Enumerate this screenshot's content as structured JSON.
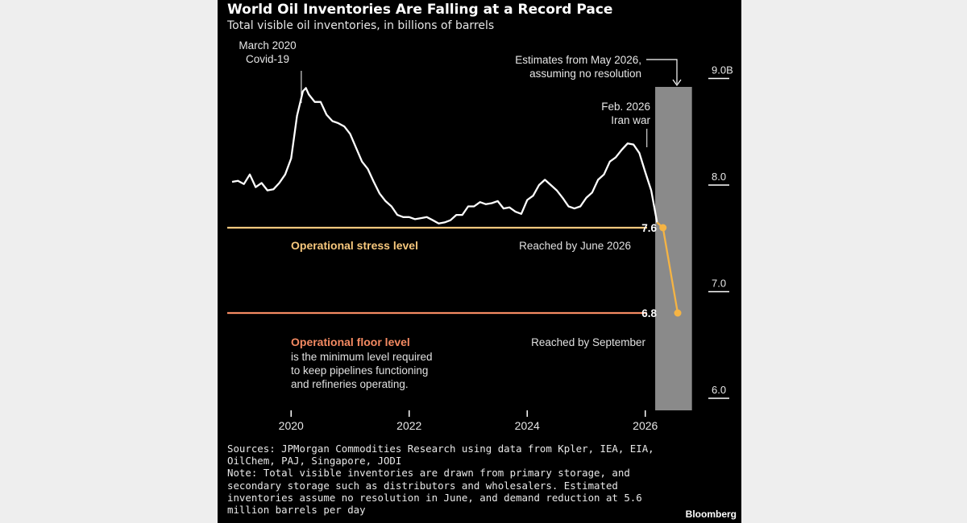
{
  "colors": {
    "background": "#000000",
    "line": "#ffffff",
    "estimate_line": "#f5b444",
    "stress_level": "#f7c87d",
    "floor_level": "#f48a62",
    "shade": "#8a8a8a"
  },
  "title": "World Oil Inventories Are Falling at a Record Pace",
  "subtitle": "Total visible oil inventories, in billions of barrels",
  "chart_data": {
    "type": "line",
    "title": "World Oil Inventories Are Falling at a Record Pace",
    "subtitle": "Total visible oil inventories, in billions of barrels",
    "xlabel": "",
    "ylabel": "",
    "xlim": [
      2019.0,
      2026.9
    ],
    "ylim": [
      6.0,
      9.0
    ],
    "x_ticks": [
      2020,
      2022,
      2024,
      2026
    ],
    "x_tick_labels": [
      "2020",
      "2022",
      "2024",
      "2026"
    ],
    "y_ticks": [
      6.0,
      7.0,
      8.0,
      9.0
    ],
    "y_tick_labels": [
      "6.0",
      "7.0",
      "8.0",
      "9.0B"
    ],
    "grid": false,
    "series": [
      {
        "x": [
          2019.0,
          2019.1,
          2019.2,
          2019.3,
          2019.4,
          2019.5,
          2019.6,
          2019.7,
          2019.8,
          2019.9,
          2020.0,
          2020.1,
          2020.2,
          2020.25,
          2020.3,
          2020.4,
          2020.5,
          2020.6,
          2020.7,
          2020.8,
          2020.9,
          2021.0,
          2021.1,
          2021.2,
          2021.3,
          2021.4,
          2021.5,
          2021.6,
          2021.7,
          2021.8,
          2021.9,
          2022.0,
          2022.1,
          2022.2,
          2022.3,
          2022.4,
          2022.5,
          2022.6,
          2022.7,
          2022.8,
          2022.9,
          2023.0,
          2023.1,
          2023.2,
          2023.3,
          2023.4,
          2023.5,
          2023.6,
          2023.7,
          2023.8,
          2023.9,
          2024.0,
          2024.1,
          2024.2,
          2024.3,
          2024.4,
          2024.5,
          2024.6,
          2024.7,
          2024.8,
          2024.9,
          2025.0,
          2025.1,
          2025.2,
          2025.3,
          2025.4,
          2025.5,
          2025.6,
          2025.7,
          2025.8,
          2025.9,
          2026.0,
          2026.1,
          2026.2
        ],
        "values": [
          8.03,
          8.04,
          8.01,
          8.1,
          7.98,
          8.02,
          7.95,
          7.96,
          8.02,
          8.1,
          8.25,
          8.65,
          8.88,
          8.91,
          8.85,
          8.78,
          8.78,
          8.66,
          8.6,
          8.58,
          8.55,
          8.48,
          8.35,
          8.22,
          8.15,
          8.03,
          7.92,
          7.85,
          7.8,
          7.72,
          7.7,
          7.7,
          7.68,
          7.69,
          7.7,
          7.67,
          7.64,
          7.65,
          7.67,
          7.72,
          7.72,
          7.8,
          7.8,
          7.84,
          7.82,
          7.83,
          7.85,
          7.78,
          7.79,
          7.75,
          7.73,
          7.86,
          7.9,
          8.0,
          8.05,
          8.0,
          7.95,
          7.88,
          7.8,
          7.78,
          7.8,
          7.88,
          7.93,
          8.05,
          8.1,
          8.22,
          8.26,
          8.33,
          8.39,
          8.38,
          8.3,
          8.12,
          7.95,
          7.65
        ]
      },
      {
        "x": [
          2026.2,
          2026.3,
          2026.55
        ],
        "values": [
          7.65,
          7.6,
          6.8
        ]
      }
    ],
    "reference_lines": [
      {
        "value": 7.6,
        "label": "Operational stress level",
        "note": "Reached by June 2026",
        "end_label": "7.6"
      },
      {
        "value": 6.8,
        "label": "Operational floor level",
        "description": [
          "is the minimum level required",
          "to keep pipelines functioning",
          "and refineries operating."
        ],
        "note": "Reached by September",
        "end_label": "6.8"
      }
    ],
    "shaded_region": {
      "x": [
        2026.25,
        2026.9
      ],
      "label": [
        "Estimates from May 2026,",
        "assuming no resolution"
      ]
    },
    "annotations": [
      {
        "x": 2020.2,
        "value": 8.91,
        "label": [
          "March 2020",
          "Covid-19"
        ]
      },
      {
        "x": 2026.0,
        "value": 8.39,
        "label": [
          "Feb. 2026",
          "Iran war"
        ]
      }
    ]
  },
  "footnotes": {
    "sources": [
      "Sources: JPMorgan Commodities Research using data from Kpler, IEA, EIA,",
      "OilChem, PAJ, Singapore, JODI"
    ],
    "note": [
      "Note: Total visible inventories are drawn from primary storage, and",
      "secondary storage such as distributors and wholesalers. Estimated",
      "inventories assume no resolution in June, and demand reduction at 5.6",
      "million barrels per day"
    ]
  },
  "brand": "Bloomberg"
}
